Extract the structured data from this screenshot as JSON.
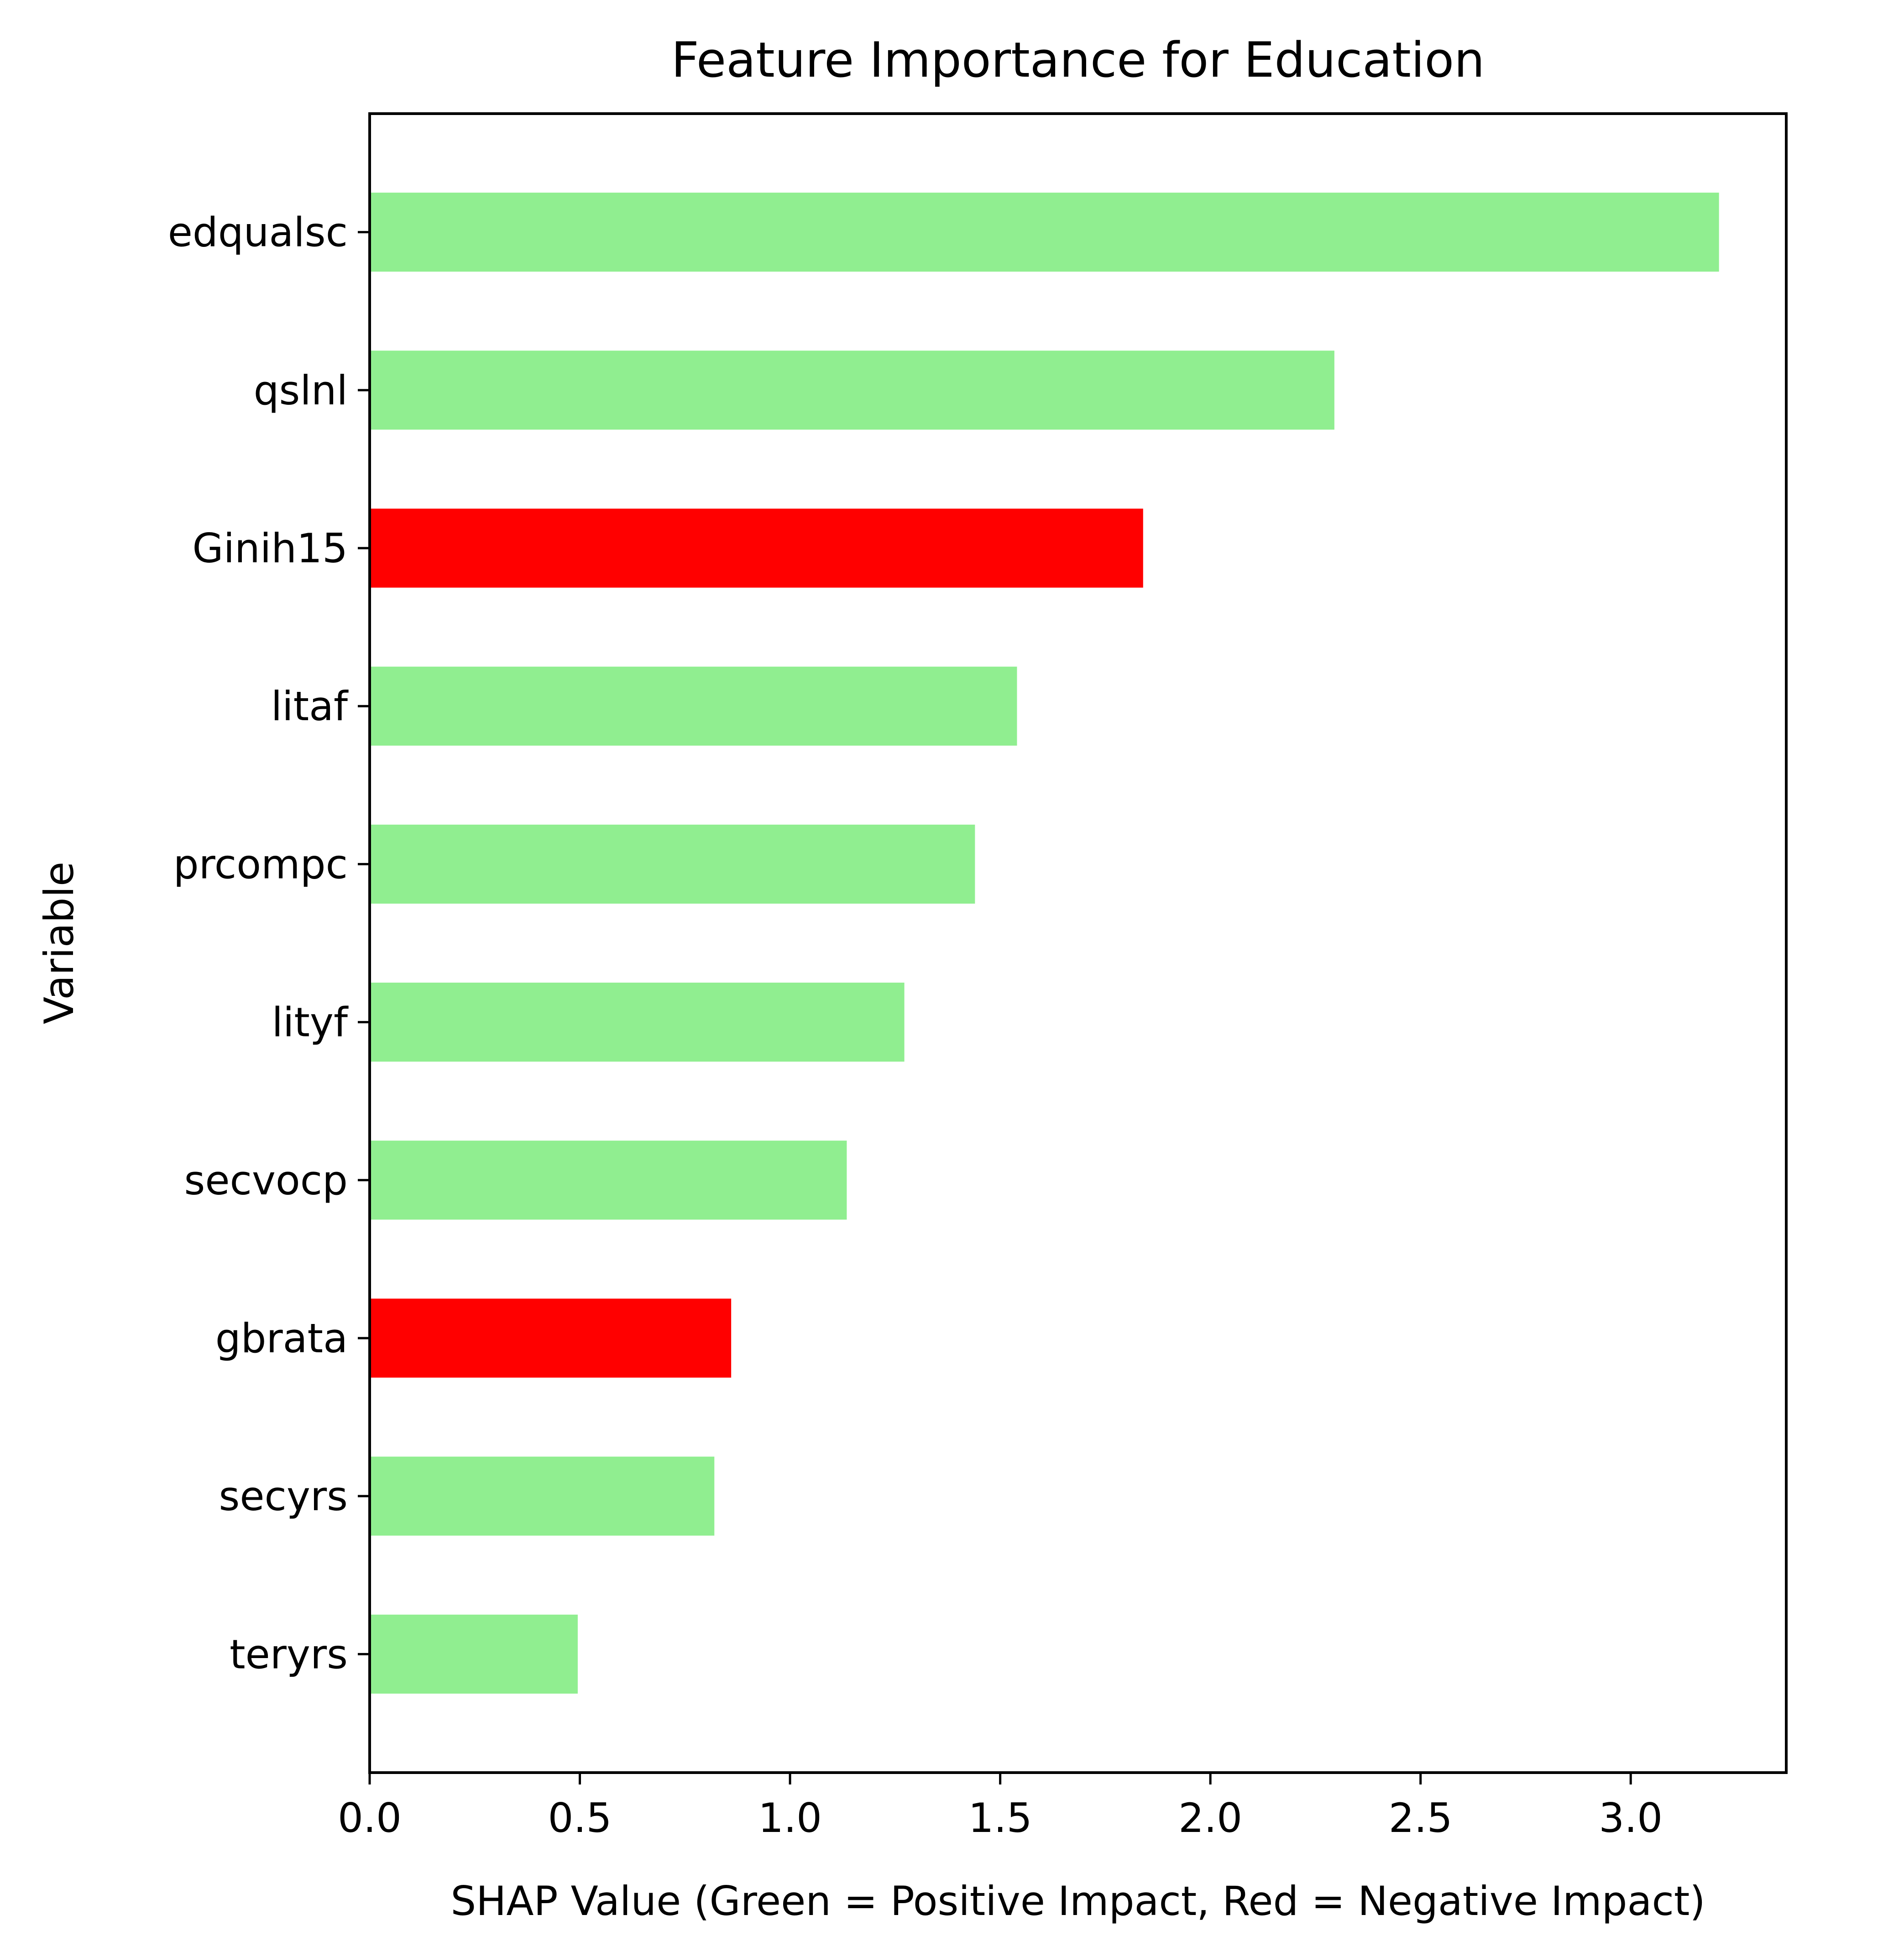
{
  "chart_data": {
    "type": "bar",
    "orientation": "horizontal",
    "title": "Feature Importance for Education",
    "xlabel": "SHAP Value (Green = Positive Impact, Red = Negative Impact)",
    "ylabel": "Variable",
    "categories": [
      "edqualsc",
      "qslnl",
      "Ginih15",
      "litaf",
      "prcompc",
      "lityf",
      "secvocp",
      "gbrata",
      "secyrs",
      "teryrs"
    ],
    "values": [
      3.21,
      2.295,
      1.84,
      1.54,
      1.44,
      1.272,
      1.135,
      0.86,
      0.82,
      0.495
    ],
    "impact": [
      "positive",
      "positive",
      "negative",
      "positive",
      "positive",
      "positive",
      "positive",
      "negative",
      "positive",
      "positive"
    ],
    "colors": {
      "positive": "#90EE90",
      "negative": "#FF0000"
    },
    "xlim": [
      0,
      3.37
    ],
    "xticks": [
      "0.0",
      "0.5",
      "1.0",
      "1.5",
      "2.0",
      "2.5",
      "3.0"
    ],
    "xtick_values": [
      0,
      0.5,
      1.0,
      1.5,
      2.0,
      2.5,
      3.0
    ],
    "grid": false,
    "legend": "none"
  }
}
